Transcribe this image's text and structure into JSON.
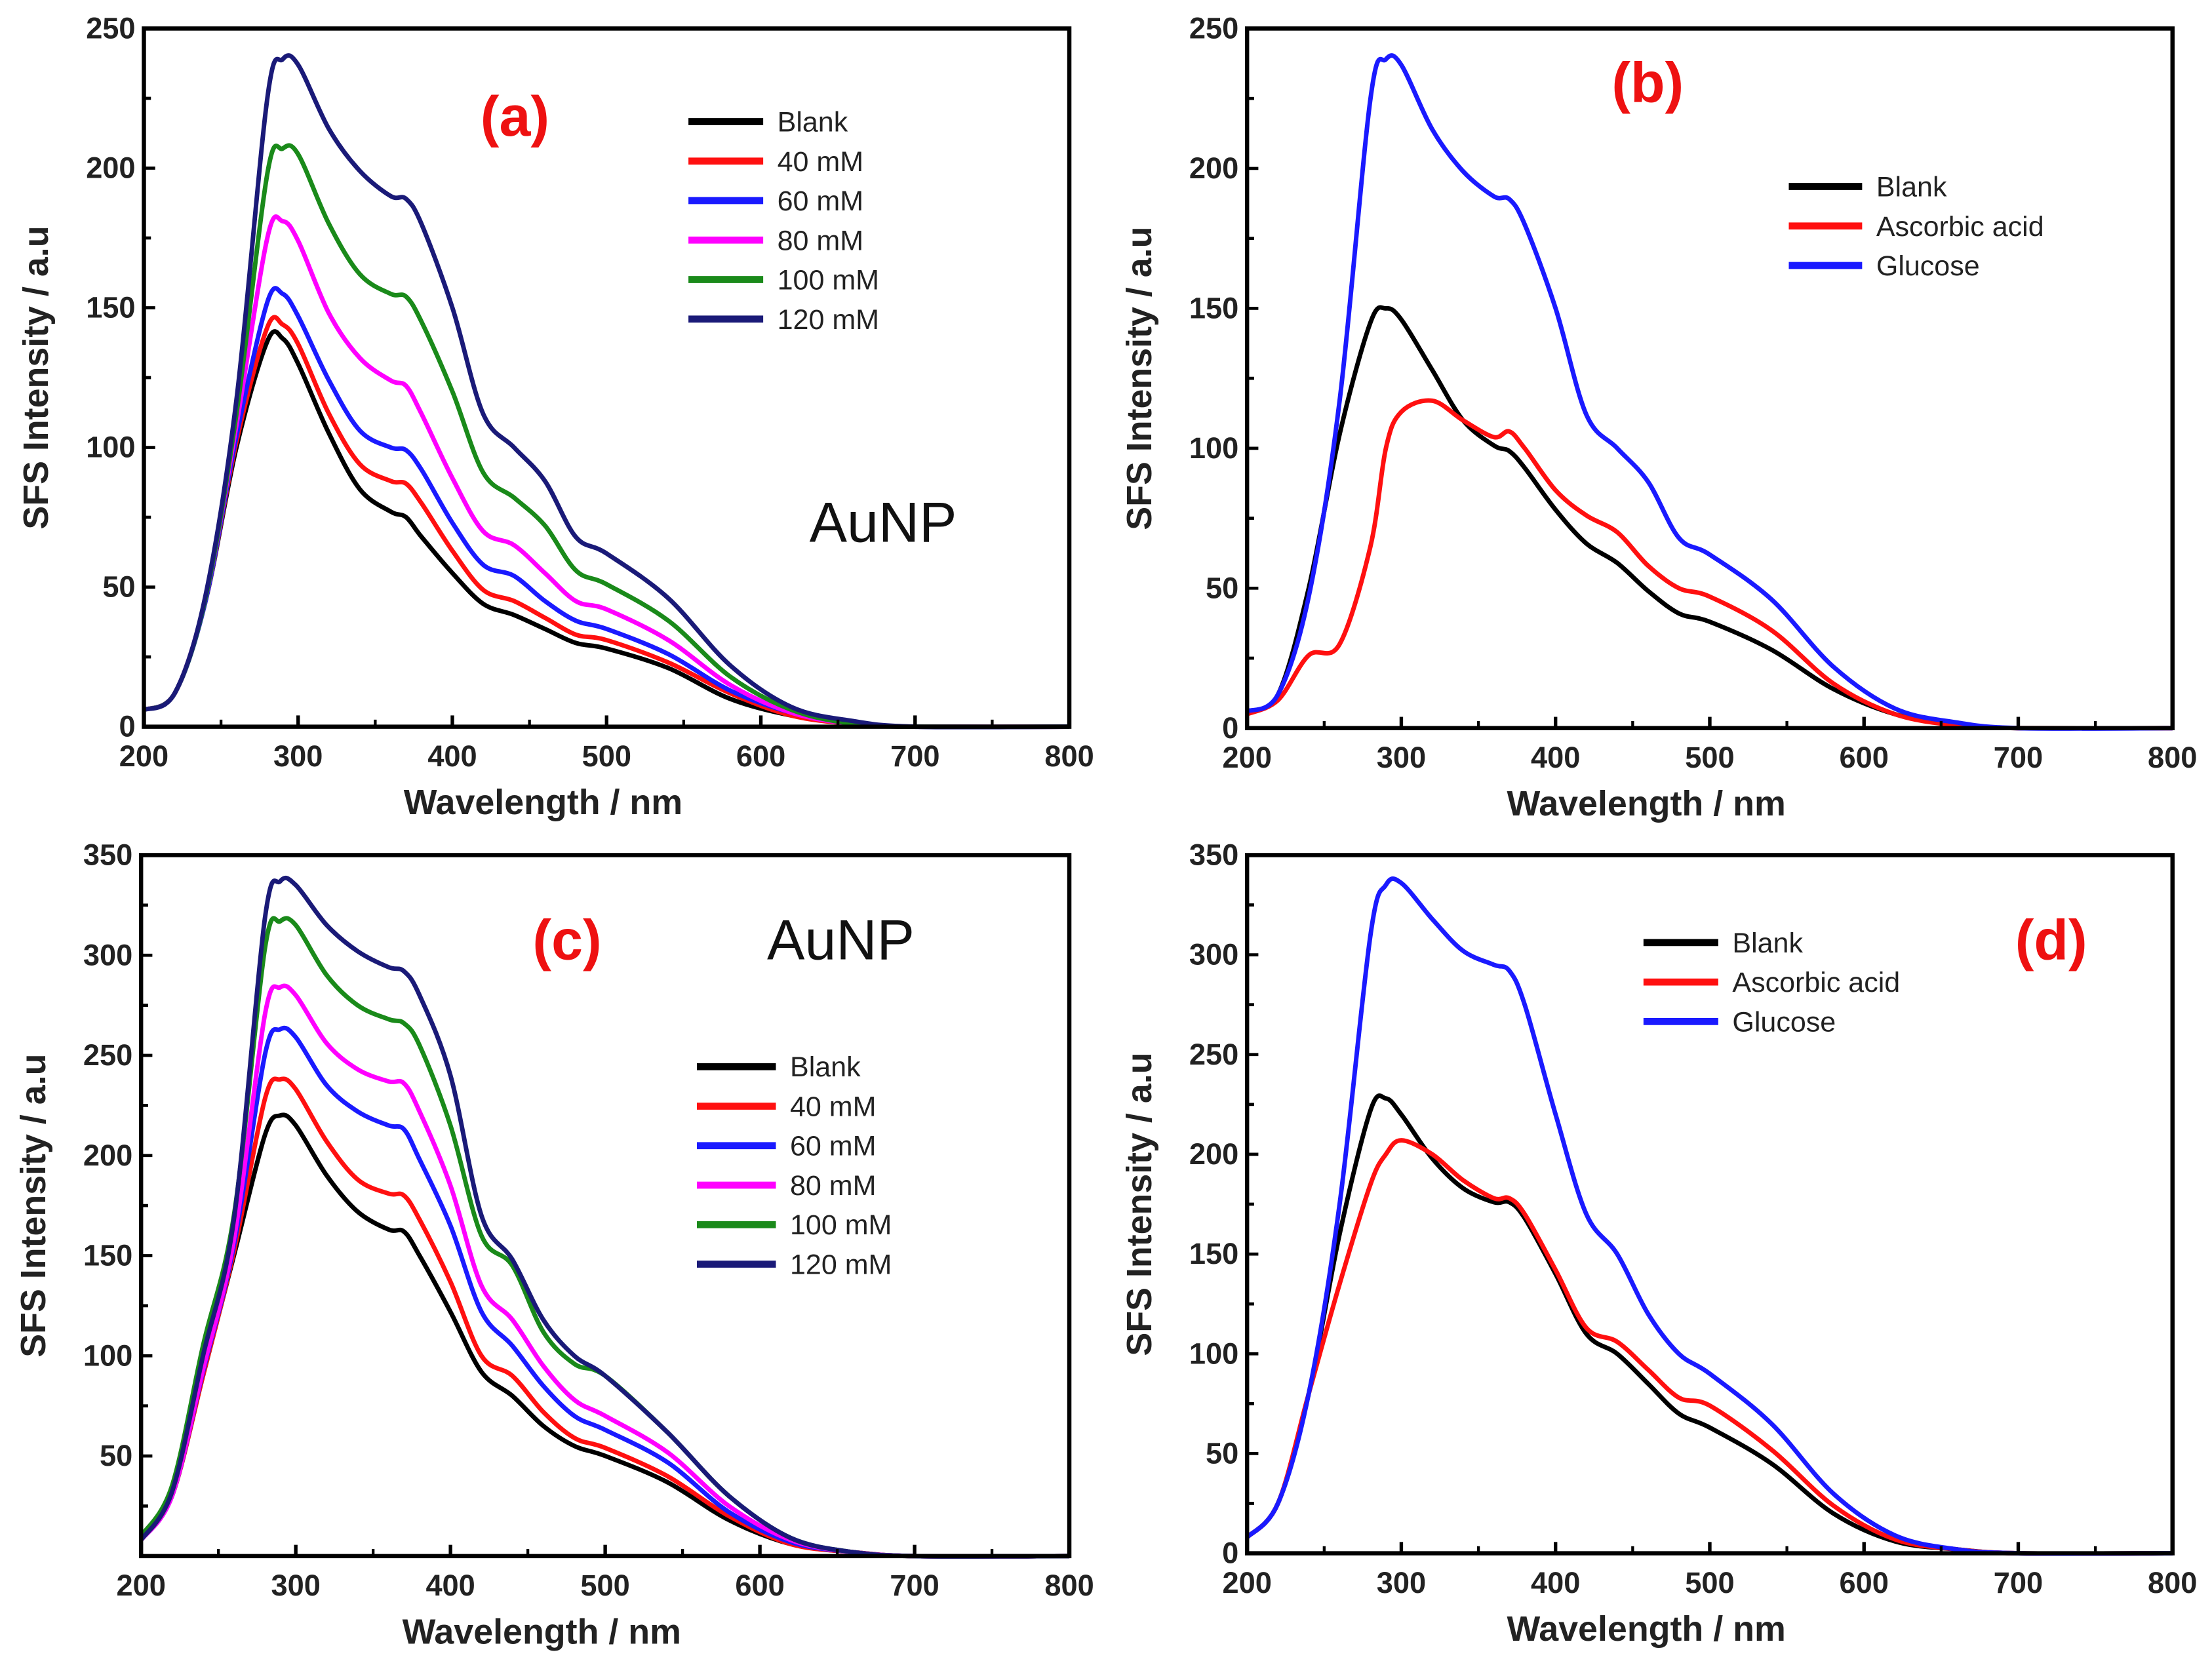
{
  "colors": {
    "Blank": "#000000",
    "40 mM": "#ff1010",
    "60 mM": "#1a1aff",
    "80 mM": "#ff00ff",
    "100 mM": "#1a8a1a",
    "120 mM": "#1a1a78",
    "Ascorbic acid": "#ff1010",
    "Glucose": "#1a1aff"
  },
  "chart_data": [
    {
      "type": "line",
      "panel_label": "(a)",
      "annotation": "AuNP",
      "xlabel": "Wavelength / nm",
      "ylabel": "SFS Intensity / a.u",
      "xlim": [
        200,
        800
      ],
      "ylim": [
        0,
        250
      ],
      "xticks": [
        200,
        300,
        400,
        500,
        600,
        700,
        800
      ],
      "yticks": [
        0,
        50,
        100,
        150,
        200,
        250
      ],
      "legend": "top-right",
      "x": [
        200,
        220,
        240,
        260,
        280,
        290,
        300,
        320,
        340,
        360,
        370,
        380,
        400,
        420,
        440,
        460,
        480,
        500,
        540,
        580,
        620,
        660,
        700,
        800
      ],
      "series": [
        {
          "name": "Blank",
          "values": [
            6,
            12,
            45,
            100,
            138,
            139,
            130,
            105,
            85,
            77,
            75,
            68,
            55,
            44,
            40,
            35,
            30,
            28,
            21,
            10,
            4,
            1,
            0,
            0
          ]
        },
        {
          "name": "40 mM",
          "values": [
            6,
            12,
            45,
            102,
            143,
            144,
            137,
            112,
            94,
            88,
            87,
            80,
            63,
            49,
            45,
            39,
            33,
            31,
            23,
            12,
            4,
            1,
            0,
            0
          ]
        },
        {
          "name": "60 mM",
          "values": [
            6,
            12,
            45,
            104,
            152,
            155,
            147,
            124,
            106,
            100,
            99,
            92,
            73,
            58,
            54,
            45,
            38,
            35,
            26,
            13,
            5,
            1,
            0,
            0
          ]
        },
        {
          "name": "80 mM",
          "values": [
            6,
            12,
            46,
            108,
            175,
            181,
            174,
            148,
            132,
            124,
            122,
            112,
            89,
            70,
            65,
            55,
            45,
            42,
            31,
            15,
            5,
            1,
            0,
            0
          ]
        },
        {
          "name": "100 mM",
          "values": [
            6,
            12,
            46,
            112,
            198,
            207,
            205,
            180,
            162,
            155,
            154,
            145,
            120,
            91,
            82,
            72,
            56,
            51,
            38,
            18,
            6,
            1,
            0,
            0
          ]
        },
        {
          "name": "120 mM",
          "values": [
            6,
            12,
            47,
            117,
            225,
            239,
            237,
            214,
            199,
            190,
            189,
            180,
            150,
            112,
            100,
            88,
            68,
            62,
            46,
            22,
            7,
            2,
            0,
            0
          ]
        }
      ]
    },
    {
      "type": "line",
      "panel_label": "(b)",
      "xlabel": "Wavelength / nm",
      "ylabel": "SFS Intensity / a.u",
      "xlim": [
        200,
        800
      ],
      "ylim": [
        0,
        250
      ],
      "xticks": [
        200,
        300,
        400,
        500,
        600,
        700,
        800
      ],
      "yticks": [
        0,
        50,
        100,
        150,
        200,
        250
      ],
      "legend": "top-right",
      "x": [
        200,
        220,
        240,
        260,
        280,
        290,
        300,
        320,
        340,
        360,
        370,
        380,
        400,
        420,
        440,
        460,
        480,
        500,
        540,
        580,
        620,
        660,
        700,
        800
      ],
      "series": [
        {
          "name": "Blank",
          "values": [
            6,
            12,
            50,
            105,
            145,
            150,
            146,
            128,
            110,
            101,
            99,
            93,
            78,
            66,
            59,
            49,
            41,
            38,
            28,
            14,
            5,
            1,
            0,
            0
          ]
        },
        {
          "name": "Ascorbic acid",
          "values": [
            5,
            10,
            26,
            30,
            65,
            100,
            113,
            117,
            110,
            104,
            106,
            100,
            85,
            76,
            70,
            58,
            50,
            47,
            35,
            16,
            5,
            1,
            0,
            0
          ]
        },
        {
          "name": "Glucose",
          "values": [
            6,
            12,
            47,
            117,
            225,
            239,
            237,
            214,
            199,
            190,
            189,
            180,
            150,
            112,
            100,
            88,
            68,
            62,
            46,
            22,
            7,
            2,
            0,
            0
          ]
        }
      ]
    },
    {
      "type": "line",
      "panel_label": "(c)",
      "annotation": "AuNP",
      "xlabel": "Wavelength / nm",
      "ylabel": "SFS Intensity / a.u",
      "xlim": [
        200,
        800
      ],
      "ylim": [
        0,
        350
      ],
      "xticks": [
        200,
        300,
        400,
        500,
        600,
        700,
        800
      ],
      "yticks": [
        50,
        100,
        150,
        200,
        250,
        300,
        350
      ],
      "legend": "right",
      "x": [
        200,
        220,
        240,
        260,
        280,
        290,
        300,
        320,
        340,
        360,
        370,
        380,
        400,
        420,
        440,
        460,
        480,
        500,
        540,
        580,
        620,
        660,
        700,
        800
      ],
      "series": [
        {
          "name": "Blank",
          "values": [
            8,
            30,
            90,
            150,
            210,
            220,
            215,
            190,
            172,
            163,
            162,
            150,
            122,
            92,
            80,
            65,
            55,
            50,
            37,
            18,
            6,
            2,
            0,
            0
          ]
        },
        {
          "name": "40 mM",
          "values": [
            8,
            30,
            90,
            152,
            228,
            238,
            233,
            207,
            188,
            181,
            180,
            168,
            137,
            100,
            90,
            72,
            59,
            54,
            40,
            20,
            6,
            2,
            0,
            0
          ]
        },
        {
          "name": "60 mM",
          "values": [
            8,
            30,
            92,
            155,
            250,
            263,
            259,
            235,
            222,
            215,
            213,
            198,
            165,
            122,
            105,
            85,
            70,
            63,
            47,
            22,
            7,
            2,
            0,
            0
          ]
        },
        {
          "name": "80 mM",
          "values": [
            8,
            30,
            93,
            158,
            270,
            284,
            280,
            256,
            243,
            237,
            236,
            222,
            185,
            135,
            118,
            95,
            78,
            70,
            52,
            25,
            8,
            2,
            0,
            0
          ]
        },
        {
          "name": "100 mM",
          "values": [
            10,
            35,
            105,
            170,
            303,
            317,
            315,
            290,
            275,
            268,
            266,
            255,
            215,
            160,
            145,
            112,
            96,
            90,
            62,
            30,
            9,
            2,
            0,
            0
          ]
        },
        {
          "name": "120 mM",
          "values": [
            8,
            32,
            100,
            168,
            318,
            337,
            335,
            315,
            302,
            294,
            292,
            280,
            240,
            170,
            148,
            118,
            100,
            90,
            62,
            30,
            9,
            2,
            0,
            0
          ]
        }
      ]
    },
    {
      "type": "line",
      "panel_label": "(d)",
      "xlabel": "Wavelength / nm",
      "ylabel": "SFS Intensity / a.u",
      "xlim": [
        200,
        800
      ],
      "ylim": [
        0,
        350
      ],
      "xticks": [
        200,
        300,
        400,
        500,
        600,
        700,
        800
      ],
      "yticks": [
        0,
        50,
        100,
        150,
        200,
        250,
        300,
        350
      ],
      "legend": "top-left",
      "x": [
        200,
        220,
        240,
        260,
        280,
        290,
        300,
        320,
        340,
        360,
        370,
        380,
        400,
        420,
        440,
        460,
        480,
        500,
        540,
        580,
        620,
        660,
        700,
        800
      ],
      "series": [
        {
          "name": "Blank",
          "values": [
            8,
            25,
            80,
            160,
            222,
            228,
            220,
            198,
            183,
            176,
            176,
            168,
            140,
            110,
            100,
            85,
            70,
            63,
            45,
            20,
            6,
            2,
            0,
            0
          ]
        },
        {
          "name": "Ascorbic acid",
          "values": [
            8,
            25,
            80,
            135,
            185,
            200,
            207,
            200,
            187,
            178,
            178,
            170,
            142,
            113,
            106,
            92,
            78,
            74,
            52,
            24,
            7,
            2,
            0,
            0
          ]
        },
        {
          "name": "Glucose",
          "values": [
            8,
            25,
            80,
            175,
            310,
            335,
            336,
            318,
            302,
            295,
            292,
            275,
            220,
            170,
            150,
            120,
            100,
            90,
            65,
            30,
            9,
            2,
            0,
            0
          ]
        }
      ]
    }
  ]
}
